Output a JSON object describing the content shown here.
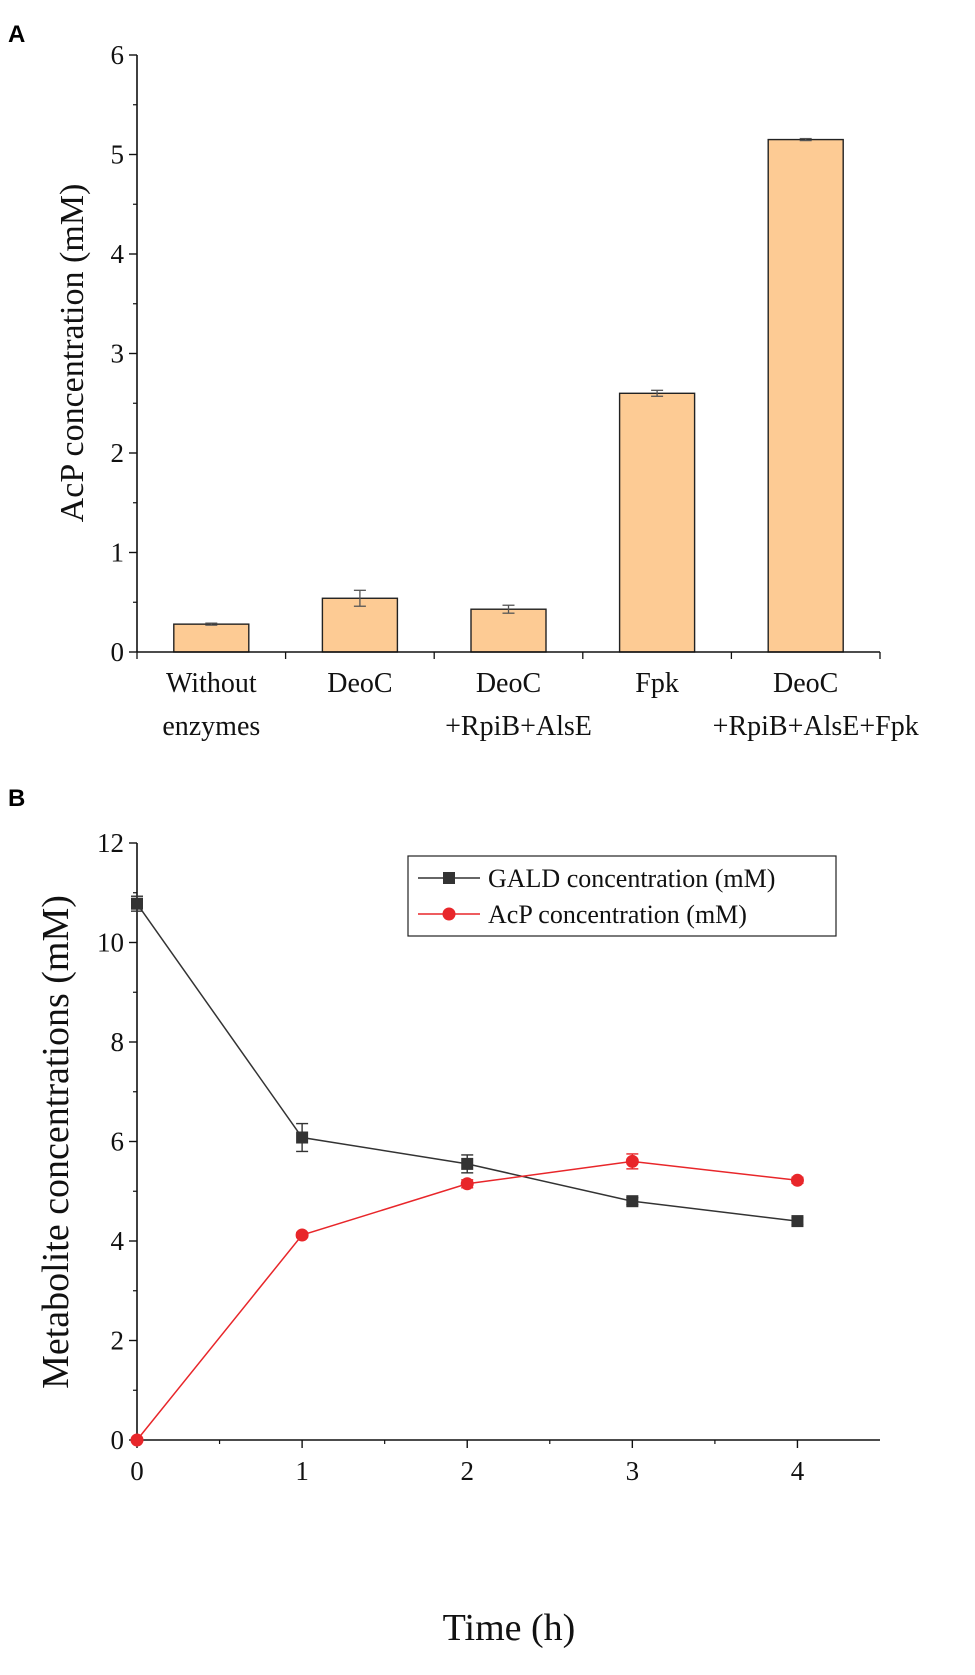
{
  "chart_data": [
    {
      "panel": "A",
      "type": "bar",
      "title": "",
      "xlabel": "",
      "ylabel": "AcP concentration (mM)",
      "ylim": [
        0,
        6
      ],
      "yticks": [
        0,
        1,
        2,
        3,
        4,
        5,
        6
      ],
      "grid": false,
      "bar_color": "#FDCB94",
      "categories": [
        [
          "Without",
          "enzymes"
        ],
        [
          "DeoC",
          ""
        ],
        [
          "DeoC",
          "+RpiB+AlsE"
        ],
        [
          "Fpk",
          ""
        ],
        [
          "DeoC",
          "+RpiB+AlsE+Fpk"
        ]
      ],
      "values": [
        0.28,
        0.54,
        0.43,
        2.6,
        5.15
      ],
      "errors": [
        0.01,
        0.08,
        0.04,
        0.03,
        0.01
      ]
    },
    {
      "panel": "B",
      "type": "line",
      "title": "",
      "xlabel": "Time (h)",
      "ylabel": "Metabolite concentrations (mM)",
      "xlim": [
        0,
        4.5
      ],
      "ylim": [
        0,
        12
      ],
      "xticks": [
        0,
        1,
        2,
        3,
        4
      ],
      "yticks": [
        0,
        2,
        4,
        6,
        8,
        10,
        12
      ],
      "grid": false,
      "legend_position": "top-right",
      "series": [
        {
          "name": "GALD concentration (mM)",
          "color": "#333333",
          "marker": "square",
          "x": [
            0,
            1,
            2,
            3,
            4
          ],
          "y": [
            10.78,
            6.08,
            5.55,
            4.8,
            4.4
          ],
          "errors": [
            0.15,
            0.28,
            0.18,
            0.07,
            0.07
          ]
        },
        {
          "name": "AcP concentration (mM)",
          "color": "#E8262A",
          "marker": "circle",
          "x": [
            0,
            1,
            2,
            3,
            4
          ],
          "y": [
            0.0,
            4.12,
            5.15,
            5.6,
            5.22
          ],
          "errors": [
            0.0,
            0.05,
            0.08,
            0.15,
            0.06
          ]
        }
      ]
    }
  ]
}
